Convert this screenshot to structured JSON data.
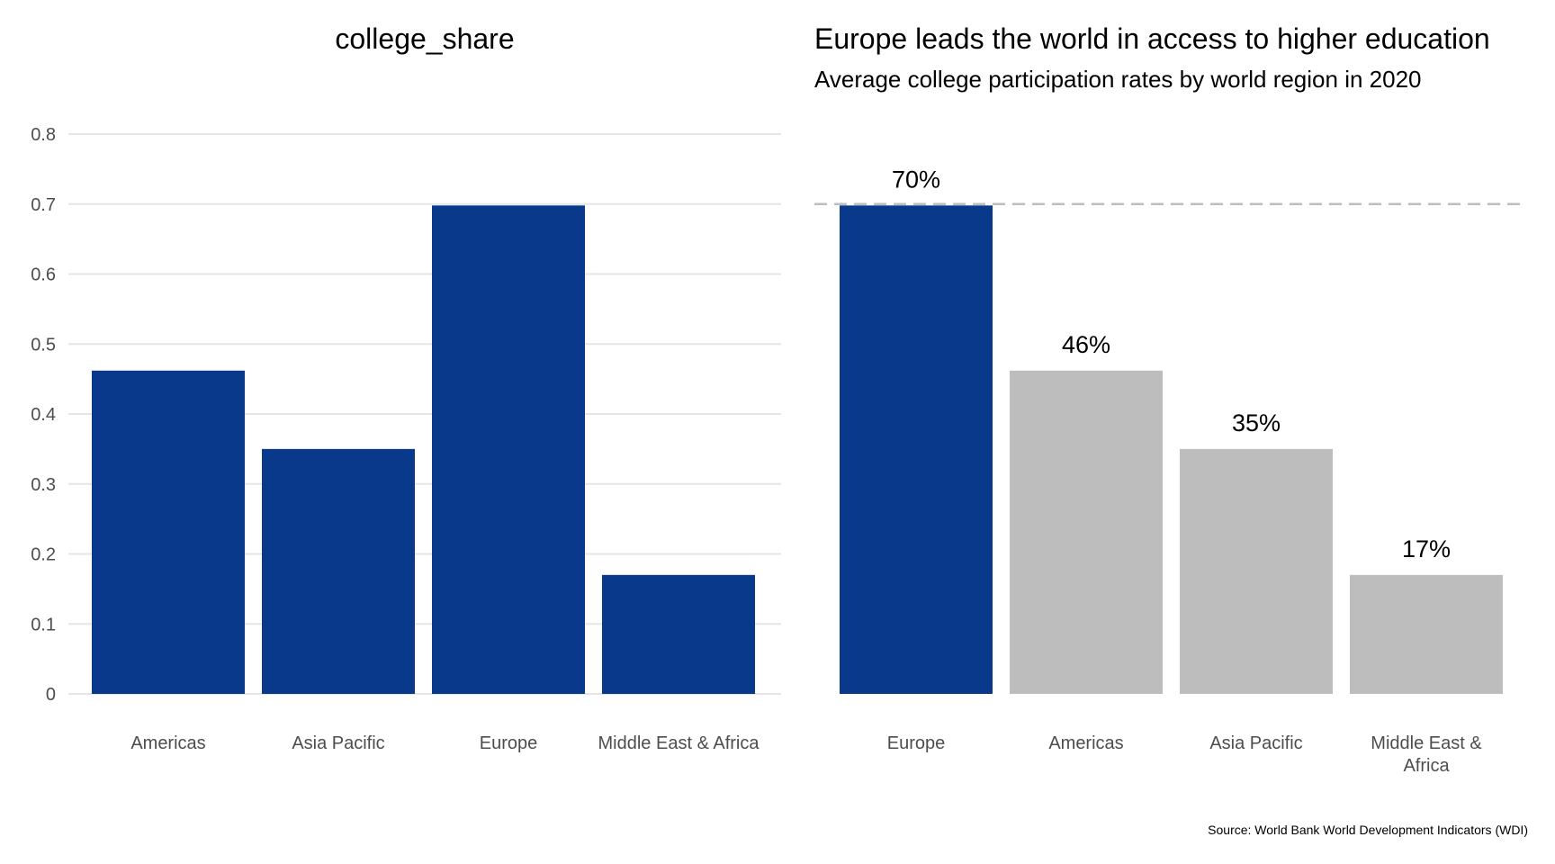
{
  "chart_data": [
    {
      "type": "bar",
      "title": "college_share",
      "xlabel": "",
      "ylabel": "",
      "categories": [
        "Americas",
        "Asia Pacific",
        "Europe",
        "Middle East & Africa"
      ],
      "values": [
        0.462,
        0.35,
        0.698,
        0.17
      ],
      "ylim": [
        0,
        0.8
      ],
      "yticks": [
        "0",
        "0.1",
        "0.2",
        "0.3",
        "0.4",
        "0.5",
        "0.6",
        "0.7",
        "0.8"
      ],
      "grid": true,
      "bar_color": "#08398A"
    },
    {
      "type": "bar",
      "title": "Europe leads the world in access to higher education",
      "subtitle": "Average college participation rates by world region in 2020",
      "caption": "Source: World Bank World Development Indicators (WDI)",
      "xlabel": "",
      "ylabel": "",
      "categories": [
        [
          "Europe"
        ],
        [
          "Americas"
        ],
        [
          "Asia Pacific"
        ],
        [
          "Middle East &",
          "Africa"
        ]
      ],
      "values": [
        0.698,
        0.462,
        0.35,
        0.17
      ],
      "data_labels": [
        "70%",
        "46%",
        "35%",
        "17%"
      ],
      "ylim": [
        0,
        0.8
      ],
      "grid": false,
      "reference_line": 0.7,
      "highlight_color": "#08398A",
      "other_color": "#BDBDBD",
      "highlight": "Europe"
    }
  ]
}
